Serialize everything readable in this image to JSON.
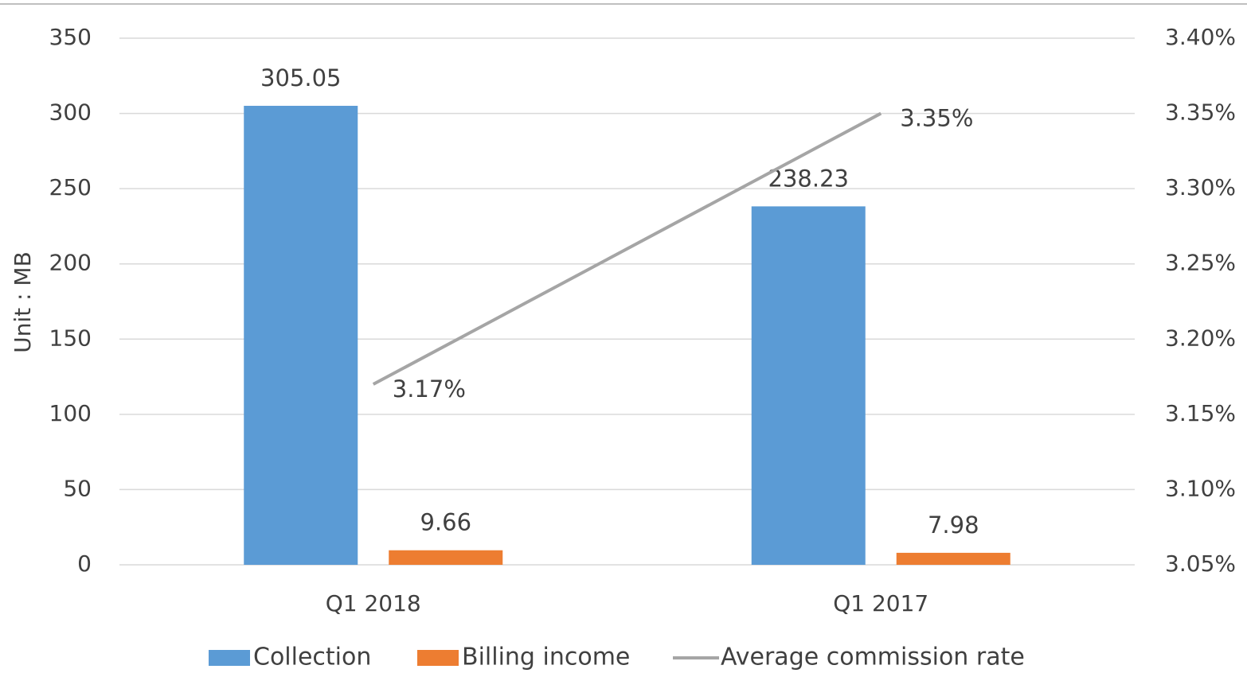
{
  "chart_data": {
    "type": "bar-line",
    "y_label": "Unit : MB",
    "categories": [
      "Q1 2018",
      "Q1 2017"
    ],
    "series": [
      {
        "name": "Collection",
        "type": "bar",
        "color": "#5b9bd5",
        "values": [
          305.05,
          238.23
        ]
      },
      {
        "name": "Billing income",
        "type": "bar",
        "color": "#ed7d31",
        "values": [
          9.66,
          7.98
        ]
      },
      {
        "name": "Average commission rate",
        "type": "line",
        "axis": "y2",
        "color": "#a5a5a5",
        "values": [
          3.17,
          3.35
        ],
        "value_labels": [
          "3.17%",
          "3.35%"
        ]
      }
    ],
    "ylim": [
      0,
      350
    ],
    "yticks": [
      0,
      50,
      100,
      150,
      200,
      250,
      300,
      350
    ],
    "y2lim": [
      3.05,
      3.4
    ],
    "y2ticks": [
      {
        "value": 3.05,
        "label": "3.05%"
      },
      {
        "value": 3.1,
        "label": "3.10%"
      },
      {
        "value": 3.15,
        "label": "3.15%"
      },
      {
        "value": 3.2,
        "label": "3.20%"
      },
      {
        "value": 3.25,
        "label": "3.25%"
      },
      {
        "value": 3.3,
        "label": "3.30%"
      },
      {
        "value": 3.35,
        "label": "3.35%"
      },
      {
        "value": 3.4,
        "label": "3.40%"
      }
    ],
    "grid": true,
    "legend": "bottom"
  }
}
